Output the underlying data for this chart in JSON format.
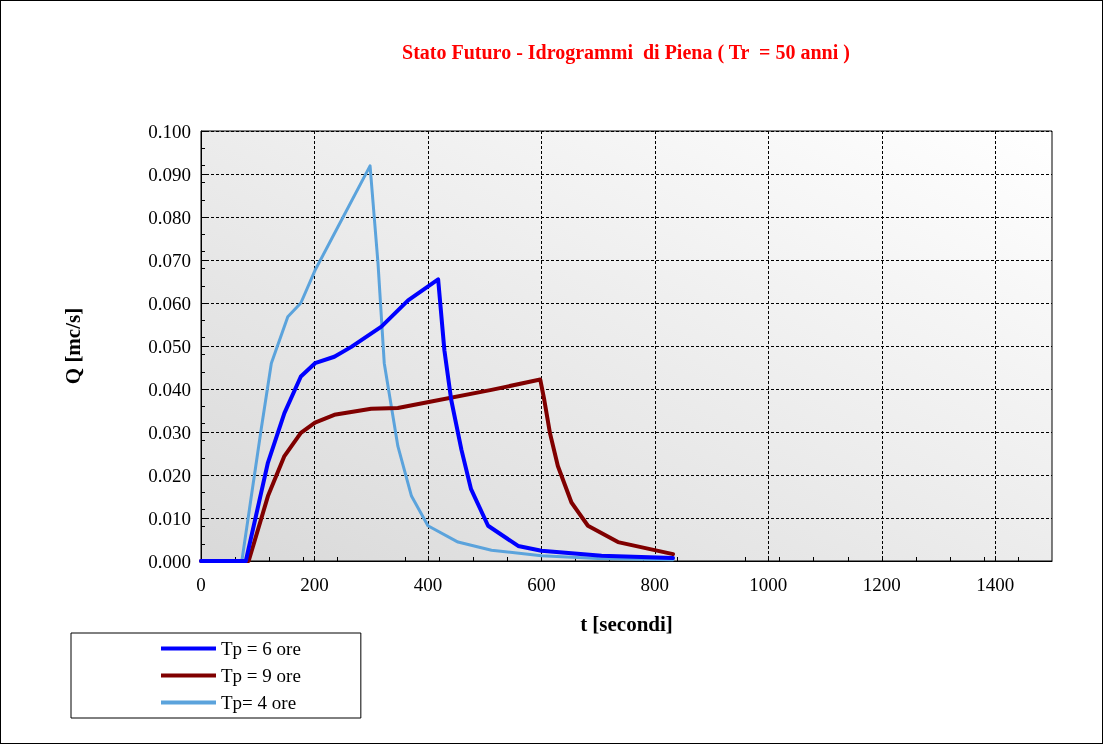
{
  "chart_data": {
    "type": "line",
    "title": "Stato Futuro - Idrogrammi  di Piena ( Tr  = 50 anni )",
    "xlabel": "t [secondi]",
    "ylabel": "Q [mc/s]",
    "xlim": [
      0,
      1500
    ],
    "xticks": [
      0,
      200,
      400,
      600,
      800,
      1000,
      1200,
      1400
    ],
    "ylim": [
      0,
      0.1
    ],
    "yticks": [
      {
        "value": 0,
        "label": "0.000"
      },
      {
        "value": 0.01,
        "label": "0.010"
      },
      {
        "value": 0.02,
        "label": "0.020"
      },
      {
        "value": 0.03,
        "label": "0.030"
      },
      {
        "value": 0.04,
        "label": "0.040"
      },
      {
        "value": 0.05,
        "label": "0.050"
      },
      {
        "value": 0.06,
        "label": "0.060"
      },
      {
        "value": 0.07,
        "label": "0.070"
      },
      {
        "value": 0.08,
        "label": "0.080"
      },
      {
        "value": 0.09,
        "label": "0.090"
      },
      {
        "value": 0.1,
        "label": "0.100"
      }
    ],
    "grid": true,
    "legend": "bottom left",
    "marker": "none",
    "line_style": "solid",
    "series": [
      {
        "name": "Tp = 6 ore",
        "color": "#0000ff",
        "x": [
          0,
          79,
          118,
          147,
          176,
          201,
          235,
          265,
          318,
          365,
          418,
          429,
          441,
          459,
          476,
          506,
          559,
          600,
          706,
          832
        ],
        "values": [
          0,
          0,
          0.0229,
          0.0344,
          0.0429,
          0.046,
          0.0475,
          0.0498,
          0.0545,
          0.0606,
          0.0655,
          0.049,
          0.0375,
          0.0259,
          0.0167,
          0.0082,
          0.0035,
          0.0024,
          0.0012,
          0.0007
        ]
      },
      {
        "name": "Tp = 9 ore",
        "color": "#800000",
        "x": [
          0,
          84,
          118,
          147,
          176,
          201,
          235,
          300,
          347,
          406,
          512,
          598,
          605,
          615,
          629,
          653,
          682,
          735,
          832
        ],
        "values": [
          0,
          0,
          0.0151,
          0.0244,
          0.0298,
          0.0322,
          0.034,
          0.0354,
          0.0356,
          0.0371,
          0.0398,
          0.0422,
          0.0375,
          0.0298,
          0.0221,
          0.0136,
          0.0082,
          0.0044,
          0.0016
        ]
      },
      {
        "name": "Tp= 4 ore",
        "color": "#5ba3dc",
        "x": [
          0,
          72,
          106,
          124,
          153,
          176,
          201,
          241,
          298,
          312,
          323,
          347,
          371,
          400,
          453,
          512,
          600,
          700,
          832
        ],
        "values": [
          0,
          0,
          0.0306,
          0.046,
          0.0568,
          0.06,
          0.0676,
          0.0776,
          0.0919,
          0.0692,
          0.046,
          0.0267,
          0.0151,
          0.0082,
          0.0044,
          0.0025,
          0.0012,
          0.0006,
          0.0003
        ]
      }
    ]
  }
}
